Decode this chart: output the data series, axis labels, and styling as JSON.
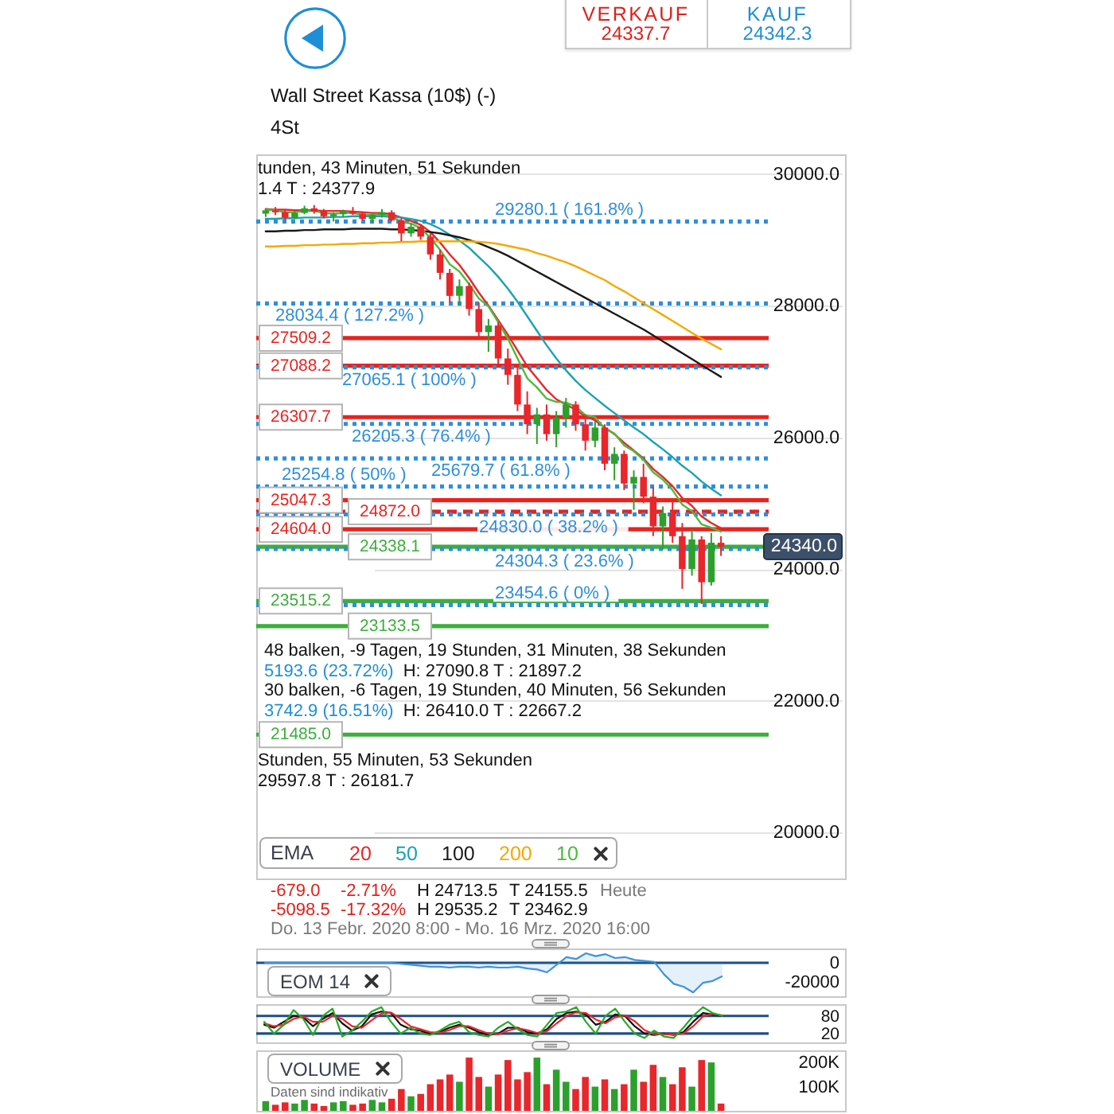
{
  "chart_data": [
    {
      "type": "candlestick",
      "title": "Wall Street Kassa (10$) (-)",
      "subtitle": "4St",
      "categories": [
        null,
        null,
        null,
        null,
        null,
        null,
        null,
        null,
        null,
        null,
        null,
        null,
        null,
        null,
        null,
        null,
        null,
        null,
        null,
        null,
        null,
        null,
        null,
        null,
        null,
        null,
        null,
        null,
        null,
        null,
        null,
        null,
        null,
        null,
        null,
        null,
        null,
        null,
        null,
        null,
        null,
        null,
        null,
        null,
        null,
        null,
        null,
        null
      ],
      "ohlc": [
        [
          29400,
          29480,
          29350,
          29450
        ],
        [
          29450,
          29500,
          29380,
          29420
        ],
        [
          29420,
          29460,
          29300,
          29340
        ],
        [
          29340,
          29440,
          29320,
          29410
        ],
        [
          29410,
          29520,
          29390,
          29480
        ],
        [
          29480,
          29530,
          29400,
          29430
        ],
        [
          29430,
          29470,
          29330,
          29360
        ],
        [
          29360,
          29420,
          29280,
          29390
        ],
        [
          29390,
          29460,
          29350,
          29440
        ],
        [
          29440,
          29500,
          29380,
          29400
        ],
        [
          29400,
          29430,
          29300,
          29320
        ],
        [
          29320,
          29400,
          29260,
          29380
        ],
        [
          29380,
          29470,
          29340,
          29420
        ],
        [
          29420,
          29450,
          29280,
          29300
        ],
        [
          29300,
          29330,
          28980,
          29100
        ],
        [
          29100,
          29250,
          29050,
          29200
        ],
        [
          29200,
          29240,
          29000,
          29050
        ],
        [
          29050,
          29100,
          28700,
          28780
        ],
        [
          28780,
          28850,
          28400,
          28500
        ],
        [
          28500,
          28560,
          28050,
          28150
        ],
        [
          28150,
          28400,
          28000,
          28300
        ],
        [
          28300,
          28350,
          27850,
          27950
        ],
        [
          27950,
          28050,
          27500,
          27600
        ],
        [
          27600,
          27800,
          27300,
          27700
        ],
        [
          27700,
          27750,
          27100,
          27200
        ],
        [
          27200,
          27350,
          26800,
          26950
        ],
        [
          26950,
          27100,
          26400,
          26500
        ],
        [
          26500,
          26700,
          26050,
          26200
        ],
        [
          26200,
          26450,
          25900,
          26350
        ],
        [
          26350,
          26500,
          25950,
          26050
        ],
        [
          26050,
          26400,
          25850,
          26300
        ],
        [
          26300,
          26600,
          26150,
          26500
        ],
        [
          26500,
          26550,
          26100,
          26200
        ],
        [
          26200,
          26350,
          25800,
          25950
        ],
        [
          25950,
          26250,
          25850,
          26150
        ],
        [
          26150,
          26200,
          25500,
          25600
        ],
        [
          25600,
          25850,
          25350,
          25750
        ],
        [
          25750,
          25800,
          25200,
          25300
        ],
        [
          25300,
          25500,
          24900,
          25400
        ],
        [
          25400,
          25600,
          25000,
          25100
        ],
        [
          25100,
          25250,
          24500,
          24650
        ],
        [
          24650,
          24950,
          24300,
          24850
        ],
        [
          24850,
          25050,
          24400,
          24500
        ],
        [
          24500,
          24700,
          23700,
          24000
        ],
        [
          24000,
          24600,
          23900,
          24450
        ],
        [
          24450,
          24500,
          23470,
          23800
        ],
        [
          23800,
          24550,
          23750,
          24400
        ],
        [
          24400,
          24500,
          24200,
          24340
        ]
      ],
      "colors": [
        "#2ca02c",
        "#e8262b",
        "#e8262b",
        "#2ca02c",
        "#2ca02c",
        "#e8262b",
        "#e8262b",
        "#2ca02c",
        "#2ca02c",
        "#e8262b",
        "#e8262b",
        "#2ca02c",
        "#2ca02c",
        "#e8262b",
        "#e8262b",
        "#2ca02c",
        "#e8262b",
        "#e8262b",
        "#e8262b",
        "#e8262b",
        "#2ca02c",
        "#e8262b",
        "#e8262b",
        "#2ca02c",
        "#e8262b",
        "#e8262b",
        "#e8262b",
        "#e8262b",
        "#2ca02c",
        "#e8262b",
        "#2ca02c",
        "#2ca02c",
        "#e8262b",
        "#e8262b",
        "#2ca02c",
        "#e8262b",
        "#2ca02c",
        "#e8262b",
        "#2ca02c",
        "#e8262b",
        "#e8262b",
        "#2ca02c",
        "#e8262b",
        "#e8262b",
        "#2ca02c",
        "#e8262b",
        "#2ca02c",
        "#e8262b"
      ],
      "series": [
        {
          "name": "20",
          "type": "line",
          "color": "#e8262b",
          "values": [
            29470,
            29460,
            29460,
            29450,
            29450,
            29450,
            29440,
            29440,
            29440,
            29430,
            29420,
            29410,
            29410,
            29390,
            29340,
            29290,
            29230,
            29120,
            28960,
            28780,
            28620,
            28420,
            28200,
            28000,
            27780,
            27560,
            27320,
            27080,
            26900,
            26720,
            26580,
            26500,
            26420,
            26320,
            26260,
            26150,
            26050,
            25920,
            25800,
            25680,
            25520,
            25400,
            25260,
            25080,
            24960,
            24800,
            24700,
            24620
          ]
        },
        {
          "name": "50",
          "type": "line",
          "color": "#1aa3b0",
          "values": [
            29320,
            29320,
            29330,
            29330,
            29340,
            29340,
            29340,
            29350,
            29350,
            29360,
            29360,
            29360,
            29360,
            29350,
            29340,
            29320,
            29290,
            29240,
            29170,
            29080,
            28990,
            28880,
            28740,
            28600,
            28440,
            28260,
            28060,
            27840,
            27620,
            27400,
            27200,
            27020,
            26860,
            26720,
            26600,
            26480,
            26370,
            26260,
            26150,
            26050,
            25930,
            25820,
            25700,
            25570,
            25460,
            25330,
            25220,
            25120
          ]
        },
        {
          "name": "100",
          "type": "line",
          "color": "#1a1a1a",
          "values": [
            29130,
            29130,
            29140,
            29140,
            29150,
            29150,
            29160,
            29160,
            29160,
            29170,
            29170,
            29170,
            29170,
            29160,
            29160,
            29150,
            29140,
            29120,
            29100,
            29070,
            29040,
            29000,
            28950,
            28890,
            28830,
            28760,
            28680,
            28600,
            28520,
            28440,
            28360,
            28280,
            28200,
            28120,
            28040,
            27960,
            27880,
            27800,
            27720,
            27640,
            27550,
            27460,
            27370,
            27280,
            27190,
            27100,
            27010,
            26920
          ]
        },
        {
          "name": "200",
          "type": "line",
          "color": "#f5a800",
          "values": [
            28900,
            28900,
            28910,
            28910,
            28920,
            28920,
            28930,
            28930,
            28940,
            28940,
            28950,
            28950,
            28960,
            28960,
            28970,
            28970,
            28980,
            28980,
            28980,
            28980,
            28980,
            28980,
            28970,
            28960,
            28940,
            28910,
            28880,
            28850,
            28800,
            28760,
            28710,
            28660,
            28600,
            28530,
            28460,
            28390,
            28300,
            28220,
            28130,
            28040,
            27950,
            27860,
            27770,
            27680,
            27590,
            27500,
            27420,
            27340
          ]
        },
        {
          "name": "10",
          "type": "line",
          "color": "#4cbb3c",
          "values": [
            29460,
            29450,
            29420,
            29420,
            29440,
            29440,
            29410,
            29400,
            29410,
            29410,
            29380,
            29380,
            29390,
            29360,
            29270,
            29250,
            29180,
            29030,
            28850,
            28630,
            28520,
            28330,
            28110,
            27990,
            27750,
            27500,
            27200,
            26900,
            26760,
            26590,
            26540,
            26530,
            26470,
            26340,
            26310,
            26130,
            26060,
            25880,
            25790,
            25660,
            25470,
            25360,
            25200,
            24980,
            24880,
            24680,
            24630,
            24570
          ]
        }
      ],
      "legend_title": "EMA",
      "legend": "bottom left",
      "ylim": [
        19300,
        30300
      ],
      "yticks": [
        {
          "value": 20000,
          "label": "20000.0"
        },
        {
          "value": 22000,
          "label": "22000.0"
        },
        {
          "value": 24000,
          "label": "24000.0"
        },
        {
          "value": 26000,
          "label": "26000.0"
        },
        {
          "value": 28000,
          "label": "28000.0"
        },
        {
          "value": 30000,
          "label": "30000.0"
        }
      ],
      "grid": "y",
      "tick_labels": "y",
      "ref_lines": [
        {
          "axis": "y",
          "value": 27509.2,
          "label": "27509.2",
          "color": "#e8231e"
        },
        {
          "axis": "y",
          "value": 27088.2,
          "label": "27088.2",
          "color": "#e8231e"
        },
        {
          "axis": "y",
          "value": 26307.7,
          "label": "26307.7",
          "color": "#e8231e"
        },
        {
          "axis": "y",
          "value": 25047.3,
          "label": "25047.3",
          "color": "#e8231e"
        },
        {
          "axis": "y",
          "value": 24872.0,
          "label": "24872.0",
          "color": "#e8231e",
          "line_style": "dashed"
        },
        {
          "axis": "y",
          "value": 24604.0,
          "label": "24604.0",
          "color": "#e8231e"
        },
        {
          "axis": "y",
          "value": 24338.1,
          "label": "24338.1",
          "color": "#3cae3c"
        },
        {
          "axis": "y",
          "value": 23515.2,
          "label": "23515.2",
          "color": "#3cae3c"
        },
        {
          "axis": "y",
          "value": 23133.5,
          "label": "23133.5",
          "color": "#3cae3c"
        },
        {
          "axis": "y",
          "value": 21485.0,
          "label": "21485.0",
          "color": "#3cae3c"
        },
        {
          "axis": "y",
          "value": 29280.1,
          "label": "29280.1 ( 161.8% )",
          "color": "#2e8fd9",
          "line_style": "dotted"
        },
        {
          "axis": "y",
          "value": 28034.4,
          "label": "28034.4 ( 127.2% )",
          "color": "#2e8fd9",
          "line_style": "dotted"
        },
        {
          "axis": "y",
          "value": 27065.1,
          "label": "27065.1 ( 100% )",
          "color": "#2e8fd9",
          "line_style": "dotted"
        },
        {
          "axis": "y",
          "value": 26205.3,
          "label": "26205.3 ( 76.4% )",
          "color": "#2e8fd9",
          "line_style": "dotted"
        },
        {
          "axis": "y",
          "value": 25679.7,
          "label": "25679.7 ( 61.8% )",
          "color": "#2e8fd9",
          "line_style": "dotted"
        },
        {
          "axis": "y",
          "value": 25254.8,
          "label": "25254.8 ( 50% )",
          "color": "#2e8fd9",
          "line_style": "dotted"
        },
        {
          "axis": "y",
          "value": 24830.0,
          "label": "24830.0 ( 38.2% )",
          "color": "#2e8fd9",
          "line_style": "dotted"
        },
        {
          "axis": "y",
          "value": 24304.3,
          "label": "24304.3 ( 23.6% )",
          "color": "#2e8fd9",
          "line_style": "dotted"
        },
        {
          "axis": "y",
          "value": 23454.6,
          "label": "23454.6 ( 0% )",
          "color": "#2e8fd9",
          "line_style": "dotted"
        }
      ],
      "annotations": [
        "VERKAUF",
        "24337.7",
        "KAUF",
        "24342.3",
        "tunden, 43 Minuten, 51 Sekunden",
        "1.4 T : 24377.9",
        "48 balken, -9 Tagen, 19 Stunden, 31 Minuten, 38 Sekunden",
        "5193.6 (23.72%)",
        "H: 27090.8 T : 21897.2",
        "30 balken, -6 Tagen, 19 Stunden, 40 Minuten, 56 Sekunden",
        "3742.9 (16.51%)",
        "H: 26410.0 T : 22667.2",
        "Stunden, 55 Minuten, 53 Sekunden",
        "29597.8 T : 26181.7",
        "-679.0",
        "-2.71%",
        "H 24713.5",
        "T 24155.5",
        "Heute",
        "-5098.5",
        "-17.32%",
        "H 29535.2",
        "T 23462.9",
        "Do. 13 Febr. 2020 8:00 - Mo. 16 Mrz. 2020 16:00",
        "24340.0"
      ]
    },
    {
      "type": "area",
      "title": "EOM 14",
      "categories": [
        null,
        null,
        null,
        null,
        null,
        null,
        null,
        null,
        null,
        null,
        null,
        null,
        null,
        null,
        null,
        null,
        null,
        null,
        null,
        null,
        null,
        null,
        null,
        null,
        null,
        null,
        null,
        null,
        null,
        null,
        null,
        null,
        null,
        null,
        null,
        null,
        null,
        null,
        null,
        null,
        null,
        null,
        null,
        null,
        null,
        null,
        null,
        null
      ],
      "series": [
        {
          "color": "#3f93da",
          "values": [
            0,
            0,
            0,
            0,
            0,
            0,
            0,
            0,
            0,
            0,
            0,
            0,
            0,
            0,
            -1000,
            -2000,
            -3000,
            -4000,
            -4000,
            -5000,
            -4000,
            -4000,
            -5000,
            -4000,
            -5000,
            -5000,
            -4000,
            -6000,
            -7000,
            -10000,
            -2000,
            6000,
            4000,
            10000,
            7000,
            9000,
            5000,
            6000,
            3000,
            2000,
            1000,
            -12000,
            -22000,
            -25000,
            -31000,
            -21000,
            -19000,
            -14000
          ]
        }
      ],
      "ylim": [
        -35000,
        15000
      ],
      "yticks": [
        0,
        -20000
      ],
      "ref_lines": [
        {
          "axis": "y",
          "value": 0,
          "color": "#1d4f80"
        }
      ],
      "tick_labels": "y"
    },
    {
      "type": "line",
      "categories": [
        null,
        null,
        null,
        null,
        null,
        null,
        null,
        null,
        null,
        null,
        null,
        null,
        null,
        null,
        null,
        null,
        null,
        null,
        null,
        null,
        null,
        null,
        null,
        null,
        null,
        null,
        null,
        null,
        null,
        null,
        null,
        null,
        null,
        null,
        null,
        null,
        null,
        null,
        null,
        null,
        null,
        null,
        null,
        null,
        null,
        null,
        null,
        null
      ],
      "series": [
        {
          "color": "#111111",
          "values": [
            50,
            40,
            60,
            80,
            75,
            45,
            70,
            90,
            55,
            30,
            45,
            85,
            95,
            90,
            50,
            35,
            30,
            20,
            25,
            40,
            50,
            40,
            25,
            15,
            20,
            40,
            40,
            25,
            20,
            35,
            70,
            90,
            95,
            85,
            50,
            60,
            85,
            80,
            45,
            20,
            15,
            20,
            15,
            25,
            60,
            90,
            85,
            80
          ]
        },
        {
          "color": "#e8262b",
          "values": [
            55,
            45,
            50,
            70,
            78,
            60,
            60,
            80,
            70,
            45,
            40,
            65,
            88,
            92,
            70,
            45,
            35,
            25,
            22,
            32,
            45,
            45,
            32,
            20,
            18,
            30,
            38,
            32,
            22,
            28,
            55,
            80,
            92,
            90,
            68,
            55,
            75,
            82,
            62,
            32,
            18,
            18,
            17,
            20,
            45,
            78,
            88,
            82
          ]
        },
        {
          "color": "#28a828",
          "values": [
            60,
            20,
            50,
            100,
            70,
            15,
            80,
            105,
            10,
            30,
            60,
            95,
            110,
            60,
            20,
            40,
            20,
            15,
            30,
            50,
            60,
            25,
            15,
            10,
            40,
            60,
            35,
            15,
            10,
            50,
            90,
            95,
            110,
            60,
            20,
            80,
            105,
            60,
            20,
            5,
            30,
            10,
            5,
            40,
            80,
            110,
            90,
            80
          ]
        }
      ],
      "ylim": [
        -10,
        120
      ],
      "yticks": [
        80,
        20
      ],
      "ref_lines": [
        {
          "axis": "y",
          "value": 80,
          "color": "#1d4f80"
        },
        {
          "axis": "y",
          "value": 20,
          "color": "#1d4f80"
        }
      ],
      "tick_labels": "y"
    },
    {
      "type": "bar",
      "title": "VOLUME",
      "categories": [
        null,
        null,
        null,
        null,
        null,
        null,
        null,
        null,
        null,
        null,
        null,
        null,
        null,
        null,
        null,
        null,
        null,
        null,
        null,
        null,
        null,
        null,
        null,
        null,
        null,
        null,
        null,
        null,
        null,
        null,
        null,
        null,
        null,
        null,
        null,
        null,
        null,
        null,
        null,
        null,
        null,
        null,
        null,
        null,
        null,
        null,
        null,
        null
      ],
      "values": [
        40000,
        25000,
        35000,
        30000,
        45000,
        30000,
        20000,
        35000,
        40000,
        25000,
        30000,
        45000,
        35000,
        50000,
        90000,
        60000,
        70000,
        110000,
        130000,
        150000,
        120000,
        220000,
        140000,
        100000,
        150000,
        210000,
        130000,
        160000,
        220000,
        110000,
        170000,
        120000,
        90000,
        140000,
        100000,
        130000,
        90000,
        110000,
        170000,
        120000,
        190000,
        140000,
        110000,
        180000,
        100000,
        210000,
        200000,
        30000
      ],
      "colors": [
        "#2ca02c",
        "#e8262b",
        "#e8262b",
        "#2ca02c",
        "#2ca02c",
        "#e8262b",
        "#e8262b",
        "#2ca02c",
        "#2ca02c",
        "#e8262b",
        "#e8262b",
        "#2ca02c",
        "#2ca02c",
        "#e8262b",
        "#e8262b",
        "#2ca02c",
        "#e8262b",
        "#e8262b",
        "#e8262b",
        "#e8262b",
        "#2ca02c",
        "#e8262b",
        "#e8262b",
        "#2ca02c",
        "#e8262b",
        "#e8262b",
        "#e8262b",
        "#e8262b",
        "#2ca02c",
        "#e8262b",
        "#2ca02c",
        "#2ca02c",
        "#e8262b",
        "#e8262b",
        "#2ca02c",
        "#e8262b",
        "#2ca02c",
        "#e8262b",
        "#2ca02c",
        "#e8262b",
        "#e8262b",
        "#2ca02c",
        "#e8262b",
        "#e8262b",
        "#2ca02c",
        "#e8262b",
        "#2ca02c",
        "#e8262b"
      ],
      "ylim": [
        0,
        250000
      ],
      "yticks": [
        {
          "value": 100000,
          "label": "100K"
        },
        {
          "value": 200000,
          "label": "200K"
        }
      ],
      "annotations": [
        "Daten sind indikativ"
      ],
      "tick_labels": "y"
    }
  ]
}
